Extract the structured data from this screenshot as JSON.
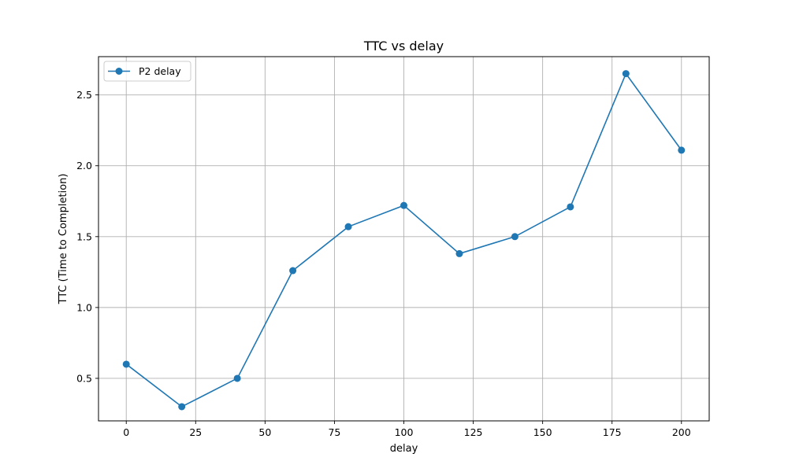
{
  "chart_data": {
    "type": "line",
    "title": "TTC vs delay",
    "xlabel": "delay",
    "ylabel": "TTC (Time to Completion)",
    "x": [
      0,
      20,
      40,
      60,
      80,
      100,
      120,
      140,
      160,
      180,
      200
    ],
    "series": [
      {
        "name": "P2 delay",
        "color": "#1f77b4",
        "marker": "circle",
        "values": [
          0.6,
          0.3,
          0.5,
          1.26,
          1.57,
          1.72,
          1.38,
          1.5,
          1.71,
          2.65,
          2.11
        ]
      }
    ],
    "xlim": [
      -10,
      210
    ],
    "ylim": [
      0.2,
      2.77
    ],
    "xticks": [
      0,
      25,
      50,
      75,
      100,
      125,
      150,
      175,
      200
    ],
    "yticks": [
      0.5,
      1.0,
      1.5,
      2.0,
      2.5
    ],
    "ytick_labels": [
      "0.5",
      "1.0",
      "1.5",
      "2.0",
      "2.5"
    ],
    "grid": true,
    "legend_position": "upper-left"
  }
}
